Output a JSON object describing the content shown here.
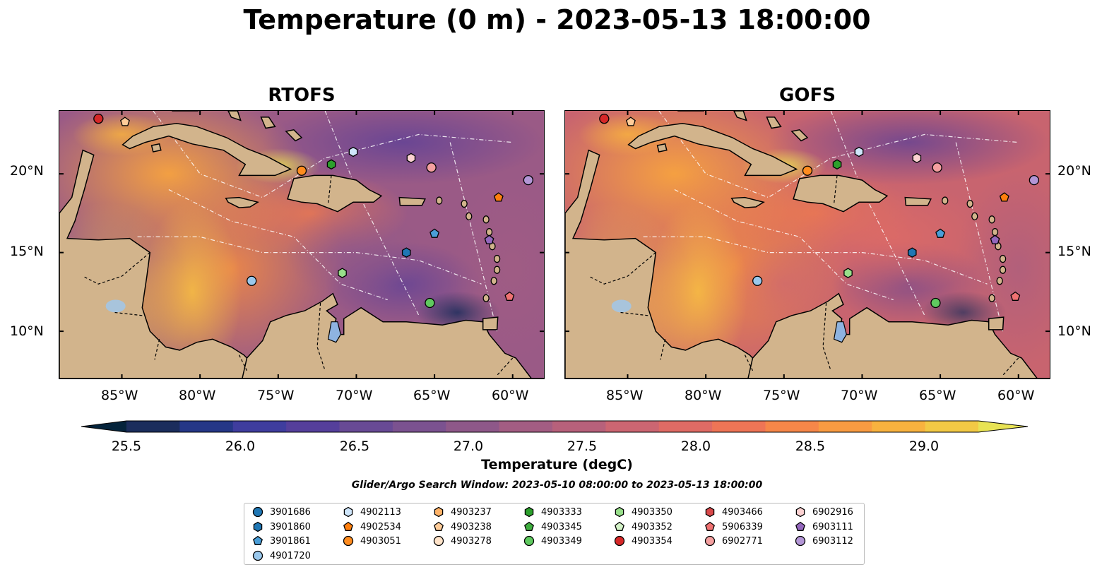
{
  "title": "Temperature (0 m) - 2023-05-13 18:00:00",
  "panels": [
    {
      "title": "RTOFS"
    },
    {
      "title": "GOFS"
    }
  ],
  "lat_ticks": [
    "20°N",
    "15°N",
    "10°N"
  ],
  "lon_ticks": [
    "85°W",
    "80°W",
    "75°W",
    "70°W",
    "65°W",
    "60°W"
  ],
  "colorbar": {
    "label": "Temperature (degC)",
    "ticks": [
      "25.5",
      "26.0",
      "26.5",
      "27.0",
      "27.5",
      "28.0",
      "28.5",
      "29.0"
    ],
    "min": 25.25,
    "max": 29.25,
    "colors": [
      "#04233b",
      "#1b2d5c",
      "#253787",
      "#3f3d9e",
      "#553f9b",
      "#684a95",
      "#7b5290",
      "#8e5889",
      "#a35d83",
      "#b7617b",
      "#cc6672",
      "#df6b65",
      "#ee7556",
      "#f68749",
      "#f99b42",
      "#f8b23f",
      "#f2c945",
      "#e8e354"
    ]
  },
  "map": {
    "lon_range": [
      -89,
      -58
    ],
    "lat_range": [
      7,
      24
    ],
    "land_color": "#d2b48c",
    "lake_color": "#8eb3e0"
  },
  "search_window": "Glider/Argo Search Window: 2023-05-10 08:00:00 to 2023-05-13 18:00:00",
  "legend": [
    {
      "id": "3901686",
      "marker": "circle",
      "color": "#1f77b4"
    },
    {
      "id": "3901860",
      "marker": "hexagon",
      "color": "#1f77b4"
    },
    {
      "id": "3901861",
      "marker": "pentagon",
      "color": "#4a9ed8"
    },
    {
      "id": "4901720",
      "marker": "circle",
      "color": "#9ac8ec"
    },
    {
      "id": "4902113",
      "marker": "hexagon",
      "color": "#cfe6fb"
    },
    {
      "id": "4902534",
      "marker": "pentagon",
      "color": "#ff7f0e"
    },
    {
      "id": "4903051",
      "marker": "circle",
      "color": "#ff8c1f"
    },
    {
      "id": "4903237",
      "marker": "hexagon",
      "color": "#ffb368"
    },
    {
      "id": "4903238",
      "marker": "pentagon",
      "color": "#ffcc99"
    },
    {
      "id": "4903278",
      "marker": "circle",
      "color": "#ffe3c9"
    },
    {
      "id": "4903333",
      "marker": "hexagon",
      "color": "#2ca02c"
    },
    {
      "id": "4903345",
      "marker": "pentagon",
      "color": "#3fae3f"
    },
    {
      "id": "4903349",
      "marker": "circle",
      "color": "#5fc95f"
    },
    {
      "id": "4903350",
      "marker": "hexagon",
      "color": "#98df8a"
    },
    {
      "id": "4903352",
      "marker": "pentagon",
      "color": "#d3f2c7"
    },
    {
      "id": "4903354",
      "marker": "circle",
      "color": "#d62728"
    },
    {
      "id": "4903466",
      "marker": "hexagon",
      "color": "#d9484a"
    },
    {
      "id": "5906339",
      "marker": "pentagon",
      "color": "#f07272"
    },
    {
      "id": "6902771",
      "marker": "circle",
      "color": "#f5a0a0"
    },
    {
      "id": "6902916",
      "marker": "hexagon",
      "color": "#fcd2d2"
    },
    {
      "id": "6903111",
      "marker": "pentagon",
      "color": "#9467bd"
    },
    {
      "id": "6903112",
      "marker": "circle",
      "color": "#b396d6"
    }
  ],
  "floats": [
    {
      "id": "4903354",
      "lon": -86.5,
      "lat": 23.5
    },
    {
      "id": "4903238",
      "lon": -84.8,
      "lat": 23.3
    },
    {
      "id": "4902113",
      "lon": -70.2,
      "lat": 21.4
    },
    {
      "id": "4903333",
      "lon": -71.6,
      "lat": 20.6
    },
    {
      "id": "4903051",
      "lon": -73.5,
      "lat": 20.2
    },
    {
      "id": "6902916",
      "lon": -66.5,
      "lat": 21.0
    },
    {
      "id": "6902771",
      "lon": -65.2,
      "lat": 20.4
    },
    {
      "id": "6903112",
      "lon": -59.0,
      "lat": 19.6
    },
    {
      "id": "4902534",
      "lon": -60.9,
      "lat": 18.5
    },
    {
      "id": "3901861",
      "lon": -65.0,
      "lat": 16.2
    },
    {
      "id": "6903111",
      "lon": -61.5,
      "lat": 15.8
    },
    {
      "id": "3901860",
      "lon": -66.8,
      "lat": 15.0
    },
    {
      "id": "4903350",
      "lon": -70.9,
      "lat": 13.7
    },
    {
      "id": "4901720",
      "lon": -76.7,
      "lat": 13.2
    },
    {
      "id": "4903349",
      "lon": -65.3,
      "lat": 11.8
    },
    {
      "id": "5906339",
      "lon": -60.2,
      "lat": 12.2
    }
  ]
}
